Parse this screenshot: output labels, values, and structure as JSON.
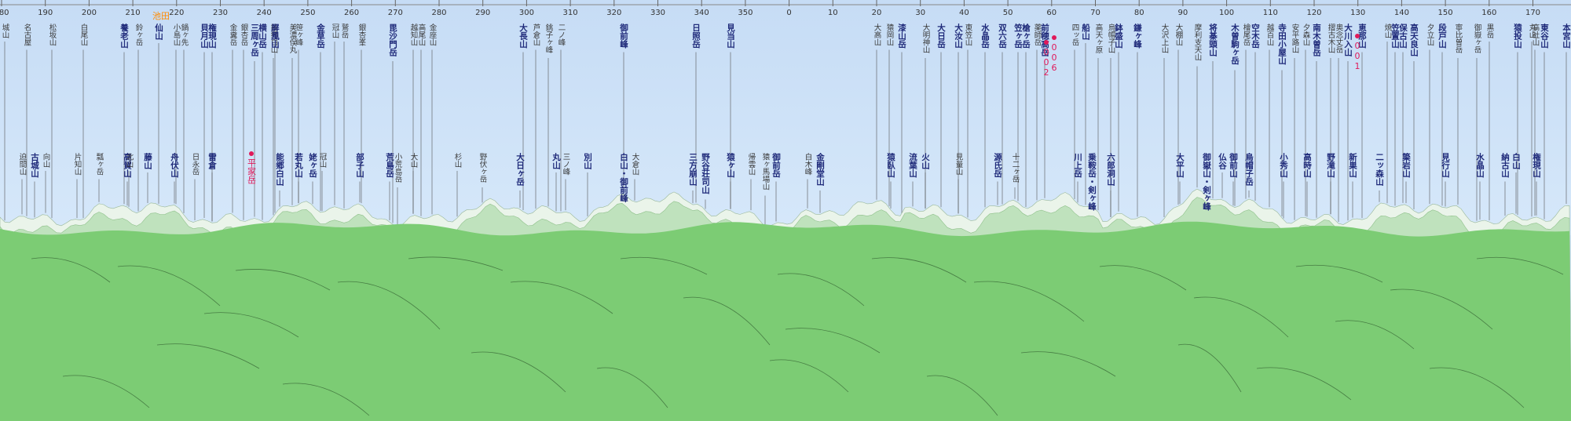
{
  "colors": {
    "sky_top": "#c6dcf5",
    "sky_bottom": "#d6e8fa",
    "ridge_far": "#eaf4ea",
    "ridge_mid": "#bfe2bd",
    "ground": "#7ccc74",
    "ground_dark": "#6fbf68",
    "peak_major": "#1f2a7a",
    "peak_minor": "#3a3a3a",
    "highlight": "#e0195a",
    "orange": "#ff8a00"
  },
  "azimuth_labels": [
    "180",
    "190",
    "200",
    "210",
    "220",
    "230",
    "240",
    "250",
    "260",
    "270",
    "280",
    "290",
    "300",
    "310",
    "320",
    "330",
    "340",
    "350",
    "0",
    "10",
    "20",
    "30",
    "40",
    "50",
    "60",
    "70",
    "80",
    "90",
    "100",
    "110",
    "120",
    "130",
    "140",
    "150",
    "160",
    "170"
  ],
  "peaks": [
    {
      "label": "城山",
      "xr": 0.003,
      "row": "t",
      "style": "minor"
    },
    {
      "label": "名古屋",
      "xr": 0.017,
      "row": "t",
      "style": "minor"
    },
    {
      "label": "松坂山",
      "xr": 0.033,
      "row": "t",
      "style": "minor"
    },
    {
      "label": "白尾山",
      "xr": 0.053,
      "row": "t",
      "style": "minor"
    },
    {
      "label": "養老山",
      "xr": 0.079,
      "row": "t",
      "style": "major"
    },
    {
      "label": "鈴ヶ岳",
      "xr": 0.088,
      "row": "t",
      "style": "minor"
    },
    {
      "label": "仙山",
      "xr": 0.101,
      "row": "t",
      "style": "major"
    },
    {
      "label": "小島山",
      "xr": 0.112,
      "row": "t",
      "style": "minor"
    },
    {
      "label": "鍋ヶ先",
      "xr": 0.117,
      "row": "t",
      "style": "minor"
    },
    {
      "label": "権現山",
      "xr": 0.135,
      "row": "t",
      "style": "major"
    },
    {
      "label": "貝月山",
      "xr": 0.13,
      "row": "t",
      "style": "major"
    },
    {
      "label": "金糞岳",
      "xr": 0.148,
      "row": "t",
      "style": "minor"
    },
    {
      "label": "銀杏岳",
      "xr": 0.155,
      "row": "t",
      "style": "minor"
    },
    {
      "label": "横山岳",
      "xr": 0.167,
      "row": "t",
      "style": "major"
    },
    {
      "label": "三周ヶ岳",
      "xr": 0.162,
      "row": "t",
      "style": "major"
    },
    {
      "label": "能郷白山",
      "xr": 0.174,
      "row": "t",
      "style": "minor"
    },
    {
      "label": "屏風山",
      "xr": 0.175,
      "row": "t",
      "style": "major"
    },
    {
      "label": "美濃俣丸",
      "xr": 0.186,
      "row": "t",
      "style": "minor"
    },
    {
      "label": "笹ヶ峰",
      "xr": 0.19,
      "row": "t",
      "style": "minor"
    },
    {
      "label": "金草岳",
      "xr": 0.204,
      "row": "t",
      "style": "major"
    },
    {
      "label": "冠山",
      "xr": 0.213,
      "row": "t",
      "style": "minor"
    },
    {
      "label": "鷲岳",
      "xr": 0.219,
      "row": "t",
      "style": "minor"
    },
    {
      "label": "銀杏峯",
      "xr": 0.23,
      "row": "t",
      "style": "minor"
    },
    {
      "label": "毘沙門岳",
      "xr": 0.25,
      "row": "t",
      "style": "major"
    },
    {
      "label": "越知山",
      "xr": 0.263,
      "row": "t",
      "style": "minor"
    },
    {
      "label": "高尾山",
      "xr": 0.268,
      "row": "t",
      "style": "minor"
    },
    {
      "label": "金座山",
      "xr": 0.275,
      "row": "t",
      "style": "minor"
    },
    {
      "label": "大長山",
      "xr": 0.333,
      "row": "t",
      "style": "major"
    },
    {
      "label": "芦倉山",
      "xr": 0.341,
      "row": "t",
      "style": "minor"
    },
    {
      "label": "銚子ヶ峰",
      "xr": 0.349,
      "row": "t",
      "style": "minor"
    },
    {
      "label": "二ノ峰",
      "xr": 0.357,
      "row": "t",
      "style": "minor"
    },
    {
      "label": "御前峰",
      "xr": 0.397,
      "row": "t",
      "style": "major"
    },
    {
      "label": "日照岳",
      "xr": 0.443,
      "row": "t",
      "style": "major"
    },
    {
      "label": "見当山",
      "xr": 0.465,
      "row": "t",
      "style": "major"
    },
    {
      "label": "大高山",
      "xr": 0.558,
      "row": "t",
      "style": "minor"
    },
    {
      "label": "猿岡山",
      "xr": 0.566,
      "row": "t",
      "style": "minor"
    },
    {
      "label": "漆山岳",
      "xr": 0.574,
      "row": "t",
      "style": "major"
    },
    {
      "label": "大明神山",
      "xr": 0.589,
      "row": "t",
      "style": "minor"
    },
    {
      "label": "大日岳",
      "xr": 0.599,
      "row": "t",
      "style": "major"
    },
    {
      "label": "大汝山",
      "xr": 0.61,
      "row": "t",
      "style": "major"
    },
    {
      "label": "東笠山",
      "xr": 0.616,
      "row": "t",
      "style": "minor"
    },
    {
      "label": "水晶岳",
      "xr": 0.627,
      "row": "t",
      "style": "major"
    },
    {
      "label": "双六岳",
      "xr": 0.638,
      "row": "t",
      "style": "major"
    },
    {
      "label": "笠ヶ岳",
      "xr": 0.648,
      "row": "t",
      "style": "major"
    },
    {
      "label": "槍ヶ岳",
      "xr": 0.653,
      "row": "t",
      "style": "major"
    },
    {
      "label": "薬師岳",
      "xr": 0.66,
      "row": "t",
      "style": "minor"
    },
    {
      "label": "前穂高岳",
      "xr": 0.665,
      "row": "t",
      "style": "major"
    },
    {
      "label": "四ッ岳",
      "xr": 0.684,
      "row": "t",
      "style": "minor"
    },
    {
      "label": "高天ヶ原",
      "xr": 0.699,
      "row": "t",
      "style": "minor"
    },
    {
      "label": "船山",
      "xr": 0.691,
      "row": "t",
      "style": "major"
    },
    {
      "label": "鉢盛山",
      "xr": 0.712,
      "row": "t",
      "style": "major"
    },
    {
      "label": "烏帽子山",
      "xr": 0.707,
      "row": "t",
      "style": "minor"
    },
    {
      "label": "鎌ヶ峰",
      "xr": 0.724,
      "row": "t",
      "style": "major"
    },
    {
      "label": "大沢上山",
      "xr": 0.741,
      "row": "t",
      "style": "minor"
    },
    {
      "label": "大棚山",
      "xr": 0.75,
      "row": "t",
      "style": "minor"
    },
    {
      "label": "摩利支天山",
      "xr": 0.762,
      "row": "t",
      "style": "minor"
    },
    {
      "label": "将棊頭山",
      "xr": 0.772,
      "row": "t",
      "style": "major"
    },
    {
      "label": "木曽駒ヶ岳",
      "xr": 0.786,
      "row": "t",
      "style": "major"
    },
    {
      "label": "檜尾岳",
      "xr": 0.793,
      "row": "t",
      "style": "minor"
    },
    {
      "label": "空木岳",
      "xr": 0.799,
      "row": "t",
      "style": "major"
    },
    {
      "label": "越百山",
      "xr": 0.808,
      "row": "t",
      "style": "minor"
    },
    {
      "label": "寺田小屋山",
      "xr": 0.816,
      "row": "t",
      "style": "major"
    },
    {
      "label": "安平路山",
      "xr": 0.824,
      "row": "t",
      "style": "minor"
    },
    {
      "label": "夕森山",
      "xr": 0.831,
      "row": "t",
      "style": "minor"
    },
    {
      "label": "南木曽岳",
      "xr": 0.838,
      "row": "t",
      "style": "major"
    },
    {
      "label": "摺古木山",
      "xr": 0.847,
      "row": "t",
      "style": "minor"
    },
    {
      "label": "奥念丈岳",
      "xr": 0.852,
      "row": "t",
      "style": "minor"
    },
    {
      "label": "大川入山",
      "xr": 0.858,
      "row": "t",
      "style": "major"
    },
    {
      "label": "恵那山",
      "xr": 0.867,
      "row": "t",
      "style": "major"
    },
    {
      "label": "焼山",
      "xr": 0.883,
      "row": "t",
      "style": "minor"
    },
    {
      "label": "高天良山",
      "xr": 0.9,
      "row": "t",
      "style": "major"
    },
    {
      "label": "笠置山",
      "xr": 0.888,
      "row": "t",
      "style": "major"
    },
    {
      "label": "保古山",
      "xr": 0.893,
      "row": "t",
      "style": "major"
    },
    {
      "label": "夕立山",
      "xr": 0.91,
      "row": "t",
      "style": "minor"
    },
    {
      "label": "段戸山",
      "xr": 0.918,
      "row": "t",
      "style": "major"
    },
    {
      "label": "寧比曽岳",
      "xr": 0.928,
      "row": "t",
      "style": "minor"
    },
    {
      "label": "御嶽ヶ岳",
      "xr": 0.94,
      "row": "t",
      "style": "minor"
    },
    {
      "label": "黒岳",
      "xr": 0.948,
      "row": "t",
      "style": "minor"
    },
    {
      "label": "猿投山",
      "xr": 0.966,
      "row": "t",
      "style": "major"
    },
    {
      "label": "丸山",
      "xr": 0.975,
      "row": "t",
      "style": "minor"
    },
    {
      "label": "東谷山",
      "xr": 0.983,
      "row": "t",
      "style": "major"
    },
    {
      "label": "高社山",
      "xr": 0.977,
      "row": "t",
      "style": "minor"
    },
    {
      "label": "本宮山",
      "xr": 0.997,
      "row": "t",
      "style": "major"
    },
    {
      "label": "迫間山",
      "xr": 0.014,
      "row": "b",
      "style": "minor"
    },
    {
      "label": "古城山",
      "xr": 0.022,
      "row": "b",
      "style": "major"
    },
    {
      "label": "向山",
      "xr": 0.029,
      "row": "b",
      "style": "minor"
    },
    {
      "label": "片知山",
      "xr": 0.049,
      "row": "b",
      "style": "minor"
    },
    {
      "label": "瓢ヶ岳",
      "xr": 0.063,
      "row": "b",
      "style": "minor"
    },
    {
      "label": "高賀山",
      "xr": 0.081,
      "row": "b",
      "style": "major"
    },
    {
      "label": "北山",
      "xr": 0.082,
      "row": "b",
      "style": "minor"
    },
    {
      "label": "藤山",
      "xr": 0.094,
      "row": "b",
      "style": "major"
    },
    {
      "label": "舟伏山",
      "xr": 0.111,
      "row": "b",
      "style": "major"
    },
    {
      "label": "日永岳",
      "xr": 0.124,
      "row": "b",
      "style": "minor"
    },
    {
      "label": "雷倉",
      "xr": 0.135,
      "row": "b",
      "style": "major"
    },
    {
      "label": "能郷白山",
      "xr": 0.178,
      "row": "b",
      "style": "major"
    },
    {
      "label": "若丸山",
      "xr": 0.19,
      "row": "b",
      "style": "major"
    },
    {
      "label": "姥ヶ岳",
      "xr": 0.199,
      "row": "b",
      "style": "major"
    },
    {
      "label": "冠山",
      "xr": 0.205,
      "row": "b",
      "style": "minor"
    },
    {
      "label": "部子山",
      "xr": 0.229,
      "row": "b",
      "style": "major"
    },
    {
      "label": "荒島岳",
      "xr": 0.248,
      "row": "b",
      "style": "major"
    },
    {
      "label": "小荒島岳",
      "xr": 0.253,
      "row": "b",
      "style": "minor"
    },
    {
      "label": "大山",
      "xr": 0.263,
      "row": "b",
      "style": "minor"
    },
    {
      "label": "杉山",
      "xr": 0.291,
      "row": "b",
      "style": "minor"
    },
    {
      "label": "野伏ヶ岳",
      "xr": 0.307,
      "row": "b",
      "style": "minor"
    },
    {
      "label": "大日ヶ岳",
      "xr": 0.331,
      "row": "b",
      "style": "major"
    },
    {
      "label": "丸山",
      "xr": 0.354,
      "row": "b",
      "style": "major"
    },
    {
      "label": "三ノ峰",
      "xr": 0.36,
      "row": "b",
      "style": "minor"
    },
    {
      "label": "別山",
      "xr": 0.374,
      "row": "b",
      "style": "major"
    },
    {
      "label": "白山・御前峰",
      "xr": 0.397,
      "row": "b",
      "style": "major"
    },
    {
      "label": "大倉山",
      "xr": 0.404,
      "row": "b",
      "style": "minor"
    },
    {
      "label": "三方崩山",
      "xr": 0.441,
      "row": "b",
      "style": "major"
    },
    {
      "label": "野谷荘司山",
      "xr": 0.449,
      "row": "b",
      "style": "major"
    },
    {
      "label": "猿ヶ山",
      "xr": 0.465,
      "row": "b",
      "style": "major"
    },
    {
      "label": "帰雲山",
      "xr": 0.478,
      "row": "b",
      "style": "minor"
    },
    {
      "label": "猿ヶ馬場山",
      "xr": 0.487,
      "row": "b",
      "style": "minor"
    },
    {
      "label": "御前岳",
      "xr": 0.494,
      "row": "b",
      "style": "major"
    },
    {
      "label": "金剛堂山",
      "xr": 0.522,
      "row": "b",
      "style": "major"
    },
    {
      "label": "白木峰",
      "xr": 0.514,
      "row": "b",
      "style": "minor"
    },
    {
      "label": "猿臥山",
      "xr": 0.567,
      "row": "b",
      "style": "major"
    },
    {
      "label": "流葉山",
      "xr": 0.581,
      "row": "b",
      "style": "major"
    },
    {
      "label": "火山",
      "xr": 0.589,
      "row": "b",
      "style": "major"
    },
    {
      "label": "見量山",
      "xr": 0.61,
      "row": "b",
      "style": "minor"
    },
    {
      "label": "源氏岳",
      "xr": 0.635,
      "row": "b",
      "style": "major"
    },
    {
      "label": "十二ヶ岳",
      "xr": 0.646,
      "row": "b",
      "style": "minor"
    },
    {
      "label": "川上岳",
      "xr": 0.686,
      "row": "b",
      "style": "major"
    },
    {
      "label": "乗鞍岳・剣ヶ峰",
      "xr": 0.695,
      "row": "b",
      "style": "major"
    },
    {
      "label": "六郎洞山",
      "xr": 0.707,
      "row": "b",
      "style": "major"
    },
    {
      "label": "大平山",
      "xr": 0.751,
      "row": "b",
      "style": "major"
    },
    {
      "label": "御嶽山・剣ヶ峰",
      "xr": 0.768,
      "row": "b",
      "style": "major"
    },
    {
      "label": "仏谷",
      "xr": 0.778,
      "row": "b",
      "style": "major"
    },
    {
      "label": "御前山",
      "xr": 0.785,
      "row": "b",
      "style": "major"
    },
    {
      "label": "烏帽子岳",
      "xr": 0.795,
      "row": "b",
      "style": "major"
    },
    {
      "label": "小秀山",
      "xr": 0.817,
      "row": "b",
      "style": "major"
    },
    {
      "label": "高時山",
      "xr": 0.832,
      "row": "b",
      "style": "major"
    },
    {
      "label": "野滝山",
      "xr": 0.847,
      "row": "b",
      "style": "major"
    },
    {
      "label": "新巣山",
      "xr": 0.861,
      "row": "b",
      "style": "major"
    },
    {
      "label": "二ッ森山",
      "xr": 0.878,
      "row": "b",
      "style": "major"
    },
    {
      "label": "簗岩山",
      "xr": 0.895,
      "row": "b",
      "style": "major"
    },
    {
      "label": "見行山",
      "xr": 0.92,
      "row": "b",
      "style": "major"
    },
    {
      "label": "水晶山",
      "xr": 0.942,
      "row": "b",
      "style": "major"
    },
    {
      "label": "納古山",
      "xr": 0.958,
      "row": "b",
      "style": "major"
    },
    {
      "label": "白山",
      "xr": 0.965,
      "row": "b",
      "style": "major"
    },
    {
      "label": "権現山",
      "xr": 0.978,
      "row": "b",
      "style": "major"
    }
  ],
  "markers": [
    {
      "label": "平家岳",
      "xr": 0.16,
      "y": 0.365,
      "color": "highlight"
    },
    {
      "label": "006",
      "xr": 0.671,
      "y": 0.09,
      "color": "highlight"
    },
    {
      "label": "002",
      "xr": 0.666,
      "y": 0.1,
      "color": "highlight"
    },
    {
      "label": "001",
      "xr": 0.864,
      "y": 0.085,
      "color": "highlight"
    }
  ],
  "tag": {
    "label": "池田",
    "xr": 0.097,
    "y": 0.045,
    "color": "orange"
  }
}
